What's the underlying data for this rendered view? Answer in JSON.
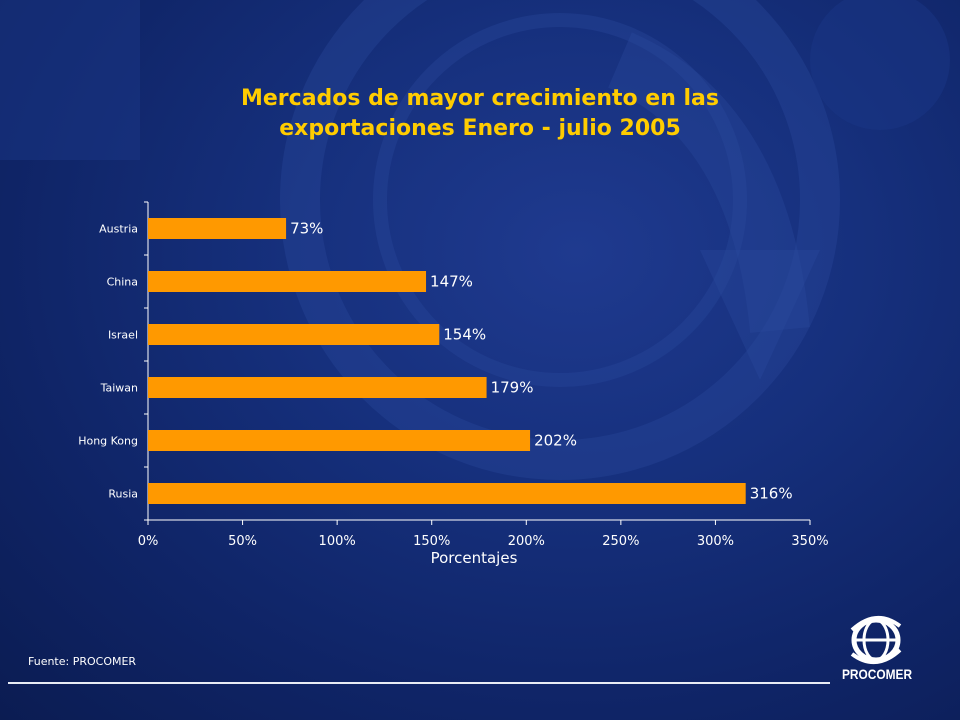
{
  "slide": {
    "title_line1": "Mercados de mayor crecimiento en las",
    "title_line2": "exportaciones Enero - julio 2005",
    "source": "Fuente: PROCOMER",
    "logo_text": "PROCOMER"
  },
  "colors": {
    "bar": "#ff9900",
    "title": "#ffcc00",
    "text": "#ffffff"
  },
  "chart_data": {
    "type": "bar",
    "orientation": "horizontal",
    "categories": [
      "Austria",
      "China",
      "Israel",
      "Taiwan",
      "Hong Kong",
      "Rusia"
    ],
    "values": [
      73,
      147,
      154,
      179,
      202,
      316
    ],
    "data_labels": [
      "73%",
      "147%",
      "154%",
      "179%",
      "202%",
      "316%"
    ],
    "title": "Mercados de mayor crecimiento en las exportaciones Enero - julio 2005",
    "xlabel": "Porcentajes",
    "ylabel": "",
    "xlim": [
      0,
      350
    ],
    "xticks": [
      0,
      50,
      100,
      150,
      200,
      250,
      300,
      350
    ],
    "xtick_labels": [
      "0%",
      "50%",
      "100%",
      "150%",
      "200%",
      "250%",
      "300%",
      "350%"
    ],
    "grid": false,
    "legend": "none"
  }
}
